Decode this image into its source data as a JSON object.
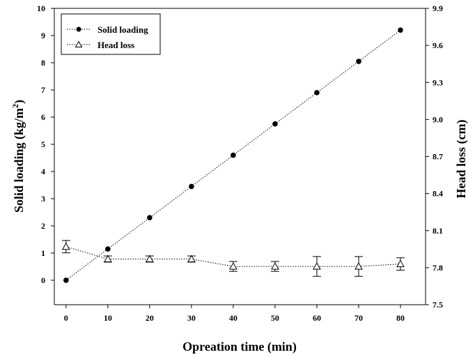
{
  "chart_data": {
    "type": "line",
    "title": "",
    "xlabel": "Opreation time (min)",
    "ylabel_left": "Solid loading (kg/m",
    "ylabel_left_sup": "2",
    "ylabel_left_tail": ")",
    "ylabel_right": "Head loss (cm)",
    "x": [
      0,
      10,
      20,
      30,
      40,
      50,
      60,
      70,
      80
    ],
    "x_ticks": [
      "0",
      "10",
      "20",
      "30",
      "40",
      "50",
      "60",
      "70",
      "80"
    ],
    "xlim": [
      -2.8,
      86
    ],
    "ylim_left": [
      -0.9,
      10
    ],
    "ylim_right": [
      7.5,
      9.9
    ],
    "y_left_ticks": [
      "0",
      "1",
      "2",
      "3",
      "4",
      "5",
      "6",
      "7",
      "8",
      "9",
      "10"
    ],
    "y_right_ticks": [
      "7.5",
      "7.8",
      "8.1",
      "8.4",
      "8.7",
      "9.0",
      "9.3",
      "9.6",
      "9.9"
    ],
    "legend_position": "top-left",
    "grid": false,
    "series": [
      {
        "name": "Solid loading",
        "axis": "left",
        "marker": "filled-circle",
        "line": "dotted",
        "values": [
          0.0,
          1.15,
          2.3,
          3.45,
          4.6,
          5.75,
          6.9,
          8.05,
          9.2
        ]
      },
      {
        "name": "Head loss",
        "axis": "right",
        "marker": "open-triangle",
        "line": "dotted",
        "values": [
          7.97,
          7.87,
          7.87,
          7.87,
          7.81,
          7.81,
          7.81,
          7.81,
          7.83
        ],
        "error": [
          0.05,
          0.025,
          0.025,
          0.025,
          0.04,
          0.04,
          0.08,
          0.08,
          0.05
        ]
      }
    ]
  }
}
